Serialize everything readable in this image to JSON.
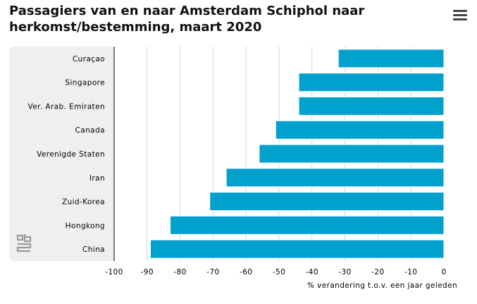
{
  "header": {
    "title": "Passagiers van en naar Amsterdam Schiphol naar herkomst/bestemming, maart 2020"
  },
  "menu": {
    "icon": "hamburger-menu-icon"
  },
  "logo": {
    "icon": "cbs-logo-icon",
    "text": "cbs"
  },
  "colors": {
    "bar": "#00a1cd",
    "grid": "#d4d4d4",
    "axis": "#000000",
    "label_panel": "#efefef"
  },
  "chart_data": {
    "type": "bar",
    "orientation": "horizontal",
    "title": "Passagiers van en naar Amsterdam Schiphol naar herkomst/bestemming, maart 2020",
    "xlabel": "% verandering t.o.v. een jaar geleden",
    "categories": [
      "Curaçao",
      "Singapore",
      "Ver. Arab. Emiraten",
      "Canada",
      "Verenigde Staten",
      "Iran",
      "Zuid-Korea",
      "Hongkong",
      "China"
    ],
    "values": [
      -32,
      -44,
      -44,
      -51,
      -56,
      -66,
      -71,
      -83,
      -89
    ],
    "xlim": [
      -100,
      0
    ],
    "xticks": [
      -100,
      -90,
      -80,
      -70,
      -60,
      -50,
      -40,
      -30,
      -20,
      -10,
      0
    ],
    "grid": true,
    "legend": "none"
  }
}
